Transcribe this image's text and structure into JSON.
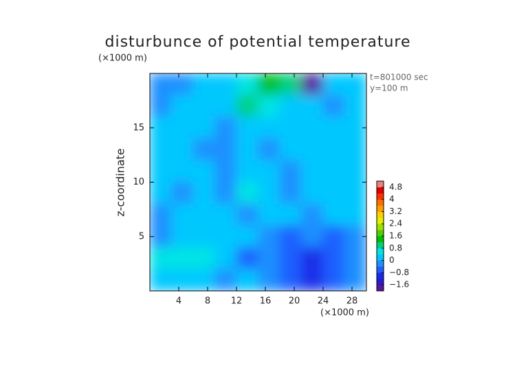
{
  "chart_data": {
    "type": "contour",
    "title": "disturbunce of potential temperature",
    "y_unit_label": "(×1000 m)",
    "x_unit_label": "(×1000 m)",
    "ylabel": "z-coordinate",
    "annotations": [
      "t=801000 sec",
      "y=100 m"
    ],
    "xlim": [
      0,
      30
    ],
    "ylim": [
      0,
      20
    ],
    "xticks": [
      4,
      8,
      12,
      16,
      20,
      24,
      28
    ],
    "yticks": [
      5,
      10,
      15
    ],
    "z": [
      [
        -0.4,
        -0.2,
        0.2,
        0.2,
        0.8,
        1.2,
        1.0,
        -1.6,
        0.2,
        0.0
      ],
      [
        -0.4,
        0.2,
        0.2,
        0.0,
        1.0,
        0.4,
        0.2,
        0.0,
        -0.2,
        0.0
      ],
      [
        0.2,
        0.2,
        0.0,
        -0.4,
        0.2,
        0.0,
        0.2,
        0.2,
        0.0,
        0.2
      ],
      [
        0.2,
        0.0,
        -0.2,
        -0.4,
        0.2,
        -0.2,
        0.2,
        0.2,
        0.2,
        0.2
      ],
      [
        0.2,
        0.0,
        0.2,
        -0.4,
        0.2,
        0.2,
        -0.2,
        0.2,
        0.2,
        0.2
      ],
      [
        0.0,
        -0.2,
        0.2,
        -0.2,
        0.4,
        0.2,
        -0.2,
        0.2,
        0.2,
        0.2
      ],
      [
        -0.2,
        0.2,
        0.2,
        0.2,
        -0.2,
        0.2,
        0.2,
        -0.2,
        0.0,
        0.2
      ],
      [
        -0.4,
        0.2,
        0.2,
        0.2,
        0.2,
        -0.4,
        -0.6,
        -0.4,
        -0.6,
        -0.2
      ],
      [
        0.4,
        0.8,
        0.8,
        0.2,
        -0.6,
        -0.4,
        -0.6,
        -1.0,
        -0.8,
        -0.4
      ],
      [
        0.0,
        0.2,
        0.0,
        -0.4,
        0.0,
        -0.4,
        -0.6,
        -1.0,
        -0.6,
        -0.2
      ]
    ],
    "colorbar": {
      "lim": [
        -2,
        5.2
      ],
      "ticks": [
        4.8,
        4,
        3.2,
        2.4,
        1.6,
        0.8,
        0,
        {
          "value": -0.8,
          "label": "−0.8"
        },
        {
          "value": -1.6,
          "label": "−1.6"
        }
      ],
      "colors": [
        "#5a14a0",
        "#2a1ad0",
        "#1a2ae8",
        "#1f5fff",
        "#1e90ff",
        "#00c8ff",
        "#00e4e4",
        "#00d080",
        "#00c000",
        "#50d000",
        "#a0e000",
        "#e0f000",
        "#ffd000",
        "#ffa000",
        "#ff7000",
        "#ff3000",
        "#e00000",
        "#f08080"
      ]
    }
  }
}
